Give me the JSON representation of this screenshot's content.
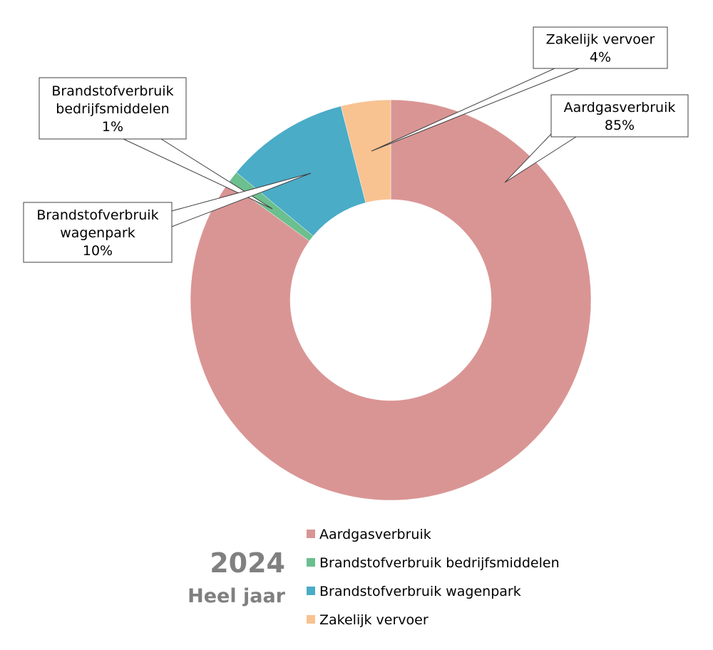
{
  "chart_data": {
    "type": "pie",
    "variant": "donut",
    "categories": [
      "Aardgasverbruik",
      "Brandstofverbruik bedrijfsmiddelen",
      "Brandstofverbruik wagenpark",
      "Zakelijk vervoer"
    ],
    "values": [
      85,
      1,
      10,
      4
    ],
    "slice_colors": [
      "#d99594",
      "#6cbf8e",
      "#4aacc6",
      "#f9c291"
    ],
    "data_labels": [
      {
        "lines": [
          "Aardgasverbruik",
          "85%"
        ]
      },
      {
        "lines": [
          "Brandstofverbruik",
          "bedrijfsmiddelen",
          "1%"
        ]
      },
      {
        "lines": [
          "Brandstofverbruik",
          "wagenpark",
          "10%"
        ]
      },
      {
        "lines": [
          "Zakelijk vervoer",
          "4%"
        ]
      }
    ],
    "legend": {
      "position": "bottom",
      "entries": [
        "Aardgasverbruik",
        "Brandstofverbruik bedrijfsmiddelen",
        "Brandstofverbruik wagenpark",
        "Zakelijk vervoer"
      ]
    }
  },
  "caption": {
    "year": "2024",
    "period": "Heel jaar"
  }
}
